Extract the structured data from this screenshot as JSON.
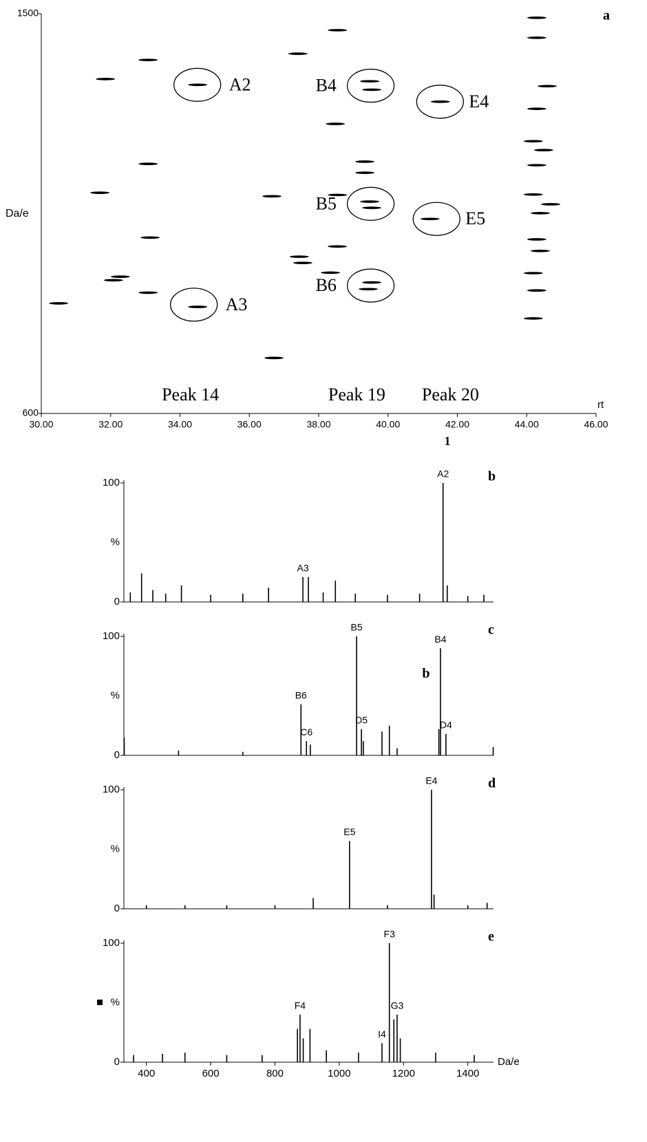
{
  "chart_data": [
    {
      "type": "map",
      "panel": "a",
      "x_label": "rt",
      "y_label": "Da/e",
      "caption": "1",
      "color": "#000",
      "xlim": [
        30,
        46
      ],
      "ylim": [
        600,
        1500
      ],
      "xticks": [
        {
          "value": 30,
          "label": "30.00"
        },
        {
          "value": 32,
          "label": "32.00"
        },
        {
          "value": 34,
          "label": "34.00"
        },
        {
          "value": 36,
          "label": "36.00"
        },
        {
          "value": 38,
          "label": "38.00"
        },
        {
          "value": 40,
          "label": "40.00"
        },
        {
          "value": 42,
          "label": "42.00"
        },
        {
          "value": 44,
          "label": "44.00"
        },
        {
          "value": 46,
          "label": "46.00"
        }
      ],
      "yticks": [
        600,
        1500
      ],
      "x": [
        31.85,
        33.08,
        34.51,
        37.4,
        38.54,
        39.47,
        39.53,
        41.51,
        38.48,
        33.08,
        31.69,
        36.65,
        39.33,
        39.33,
        38.54,
        39.47,
        39.53,
        41.21,
        33.14,
        38.54,
        37.44,
        37.54,
        32.08,
        32.28,
        33.08,
        30.5,
        34.51,
        36.71,
        39.53,
        39.43,
        38.34,
        44.29,
        44.29,
        44.59,
        44.29,
        44.19,
        44.49,
        44.29,
        44.19,
        44.69,
        44.39,
        44.29,
        44.39,
        44.19,
        44.29,
        44.19
      ],
      "y": [
        1353,
        1396,
        1340,
        1410,
        1463,
        1348,
        1329,
        1302,
        1252,
        1162,
        1097,
        1089,
        1167,
        1142,
        1092,
        1077,
        1063,
        1038,
        996,
        976,
        953,
        939,
        900,
        908,
        872,
        848,
        840,
        725,
        895,
        880,
        917,
        1491,
        1446,
        1337,
        1286,
        1213,
        1193,
        1159,
        1093,
        1071,
        1051,
        992,
        966,
        916,
        877,
        814
      ],
      "annotations": [
        {
          "text": "A2",
          "x": 34.5,
          "y": 1340
        },
        {
          "text": "A3",
          "x": 34.4,
          "y": 845
        },
        {
          "text": "B4",
          "x": 39.5,
          "y": 1338
        },
        {
          "text": "B5",
          "x": 39.5,
          "y": 1072
        },
        {
          "text": "B6",
          "x": 39.5,
          "y": 888
        },
        {
          "text": "E4",
          "x": 41.5,
          "y": 1302
        },
        {
          "text": "E5",
          "x": 41.4,
          "y": 1038
        }
      ],
      "peak_labels": [
        {
          "text": "Peak 14",
          "x": 34.3,
          "y": 639
        },
        {
          "text": "Peak 19",
          "x": 39.1,
          "y": 639
        },
        {
          "text": "Peak 20",
          "x": 41.8,
          "y": 639
        }
      ]
    },
    {
      "type": "spectrum",
      "panel": "b",
      "y_label": "%",
      "color": "#000",
      "xlim": [
        330,
        1480
      ],
      "ylim": [
        0,
        100
      ],
      "yticks": [
        0,
        100
      ],
      "x": [
        350,
        385,
        420,
        460,
        509,
        600,
        700,
        780,
        887,
        904,
        950,
        988,
        1050,
        1150,
        1250,
        1323,
        1336,
        1400,
        1450
      ],
      "values": [
        8,
        24,
        10,
        7,
        14,
        6,
        7,
        12,
        21,
        21,
        8,
        18,
        7,
        6,
        7,
        100,
        14,
        5,
        6
      ],
      "labels": [
        null,
        null,
        null,
        null,
        null,
        null,
        null,
        null,
        "A3",
        null,
        null,
        null,
        null,
        null,
        null,
        "A2",
        null,
        null,
        null
      ]
    },
    {
      "type": "spectrum",
      "panel": "c",
      "y_label": "%",
      "color": "#000",
      "xlim": [
        330,
        1480
      ],
      "ylim": [
        0,
        100
      ],
      "yticks": [
        0,
        100
      ],
      "x": [
        331,
        500,
        700,
        881,
        898,
        910,
        1054,
        1069,
        1075,
        1133,
        1156,
        1180,
        1310,
        1315,
        1332,
        1479
      ],
      "values": [
        15,
        4,
        3,
        43,
        12,
        9,
        100,
        22,
        12,
        20,
        25,
        6,
        22,
        90,
        18,
        7
      ],
      "labels": [
        null,
        null,
        null,
        "B6",
        "C6",
        null,
        "B5",
        "D5",
        null,
        null,
        null,
        null,
        null,
        "B4",
        "D4",
        null
      ],
      "annotations": [
        {
          "text": "b",
          "x": 1270,
          "y": 68
        }
      ]
    },
    {
      "type": "spectrum",
      "panel": "d",
      "y_label": "%",
      "color": "#000",
      "xlim": [
        330,
        1480
      ],
      "ylim": [
        0,
        100
      ],
      "yticks": [
        0,
        100
      ],
      "x": [
        400,
        520,
        650,
        800,
        919,
        1032,
        1150,
        1287,
        1295,
        1400,
        1460
      ],
      "values": [
        3,
        3,
        3,
        3,
        9,
        57,
        3,
        100,
        12,
        3,
        5
      ],
      "labels": [
        null,
        null,
        null,
        null,
        null,
        "E5",
        null,
        "E4",
        null,
        null,
        null
      ]
    },
    {
      "type": "spectrum",
      "panel": "e",
      "y_label": "%",
      "x_label": "Da/e",
      "color": "#000",
      "xlim": [
        330,
        1480
      ],
      "ylim": [
        0,
        100
      ],
      "yticks": [
        0,
        100
      ],
      "xticks": [
        400,
        600,
        800,
        1000,
        1200,
        1400
      ],
      "x": [
        360,
        450,
        520,
        650,
        760,
        870,
        878,
        888,
        909,
        960,
        1060,
        1133,
        1156,
        1170,
        1180,
        1190,
        1300,
        1420
      ],
      "values": [
        6,
        7,
        8,
        6,
        6,
        28,
        40,
        20,
        28,
        10,
        8,
        16,
        100,
        36,
        40,
        20,
        8,
        6
      ],
      "labels": [
        null,
        null,
        null,
        null,
        null,
        null,
        "F4",
        null,
        null,
        null,
        null,
        "I4",
        "F3",
        null,
        "G3",
        null,
        null,
        null
      ]
    }
  ]
}
